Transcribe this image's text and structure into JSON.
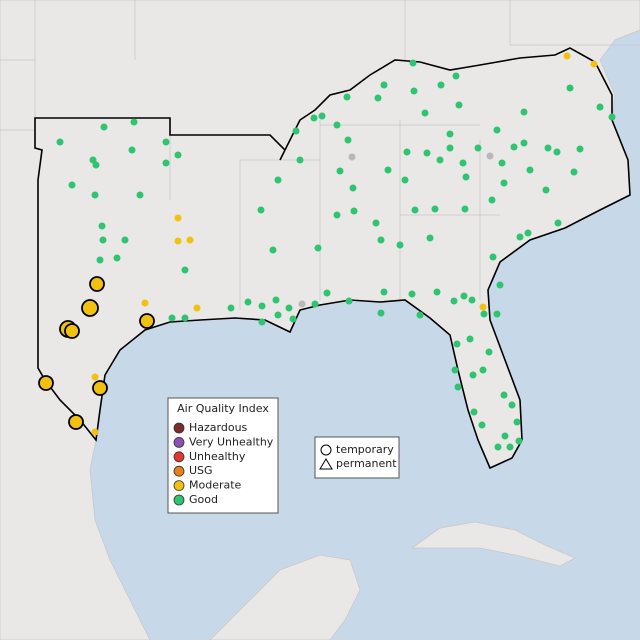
{
  "legend": {
    "title": "Air Quality Index",
    "items": [
      {
        "label": "Hazardous",
        "color": "#7e2b2b"
      },
      {
        "label": "Very Unhealthy",
        "color": "#8e4fb3"
      },
      {
        "label": "Unhealthy",
        "color": "#e0382b"
      },
      {
        "label": "USG",
        "color": "#e67e1a"
      },
      {
        "label": "Moderate",
        "color": "#f2c110"
      },
      {
        "label": "Good",
        "color": "#2fc46f"
      }
    ]
  },
  "shape_legend": {
    "items": [
      "temporary",
      "permanent"
    ]
  }
}
